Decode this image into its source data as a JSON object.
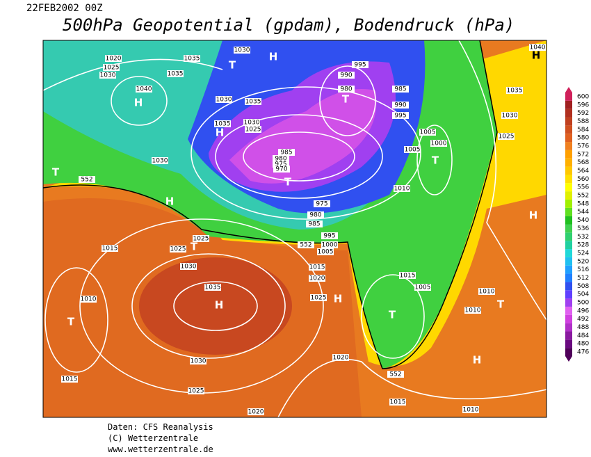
{
  "header": {
    "date": "22FEB2002 00Z",
    "title": "500hPa Geopotential (gpdam), Bodendruck (hPa)"
  },
  "footer": {
    "lines": [
      "Daten: CFS Reanalysis",
      "(C) Wetterzentrale",
      "www.wetterzentrale.de"
    ]
  },
  "colorbar": {
    "ticks": [
      476,
      480,
      484,
      488,
      492,
      496,
      500,
      504,
      508,
      512,
      516,
      520,
      524,
      528,
      532,
      536,
      540,
      544,
      548,
      552,
      556,
      560,
      564,
      568,
      572,
      576,
      580,
      584,
      588,
      592,
      596,
      600
    ],
    "colors": [
      "#50005a",
      "#6a0a80",
      "#8a1aa0",
      "#b030c8",
      "#d040e0",
      "#e060f0",
      "#a040f0",
      "#6040ff",
      "#3050f0",
      "#2080ff",
      "#20a0ff",
      "#20c0f0",
      "#20d8d8",
      "#20d0a0",
      "#30d070",
      "#40d050",
      "#20c020",
      "#60e020",
      "#a0f000",
      "#e0f000",
      "#ffff00",
      "#ffe000",
      "#ffc800",
      "#ffb000",
      "#ffa000",
      "#f08020",
      "#e06020",
      "#d05020",
      "#c04020",
      "#b03020",
      "#a02020",
      "#d0205a"
    ]
  },
  "map": {
    "labels": [
      "1020",
      "1025",
      "1030",
      "1035",
      "1035",
      "1030",
      "1040",
      "1030",
      "1035",
      "1035",
      "1030",
      "1025",
      "985",
      "980",
      "975",
      "970",
      "995",
      "990",
      "980",
      "985",
      "990",
      "995",
      "1005",
      "1000",
      "1005",
      "1010",
      "1035",
      "1030",
      "1025",
      "1040",
      "975",
      "980",
      "985",
      "995",
      "1000",
      "1005",
      "552",
      "552",
      "552",
      "1030",
      "1015",
      "1025",
      "1025",
      "1030",
      "1035",
      "1010",
      "1030",
      "1015",
      "1025",
      "1020",
      "1015",
      "1020",
      "1025",
      "1020",
      "1015",
      "1005",
      "1010",
      "1010",
      "1015",
      "1010"
    ],
    "centers": [
      "H",
      "T",
      "H",
      "T",
      "H",
      "T",
      "H",
      "T",
      "T",
      "H",
      "H",
      "T",
      "H",
      "T",
      "H",
      "T",
      "T",
      "H"
    ]
  }
}
